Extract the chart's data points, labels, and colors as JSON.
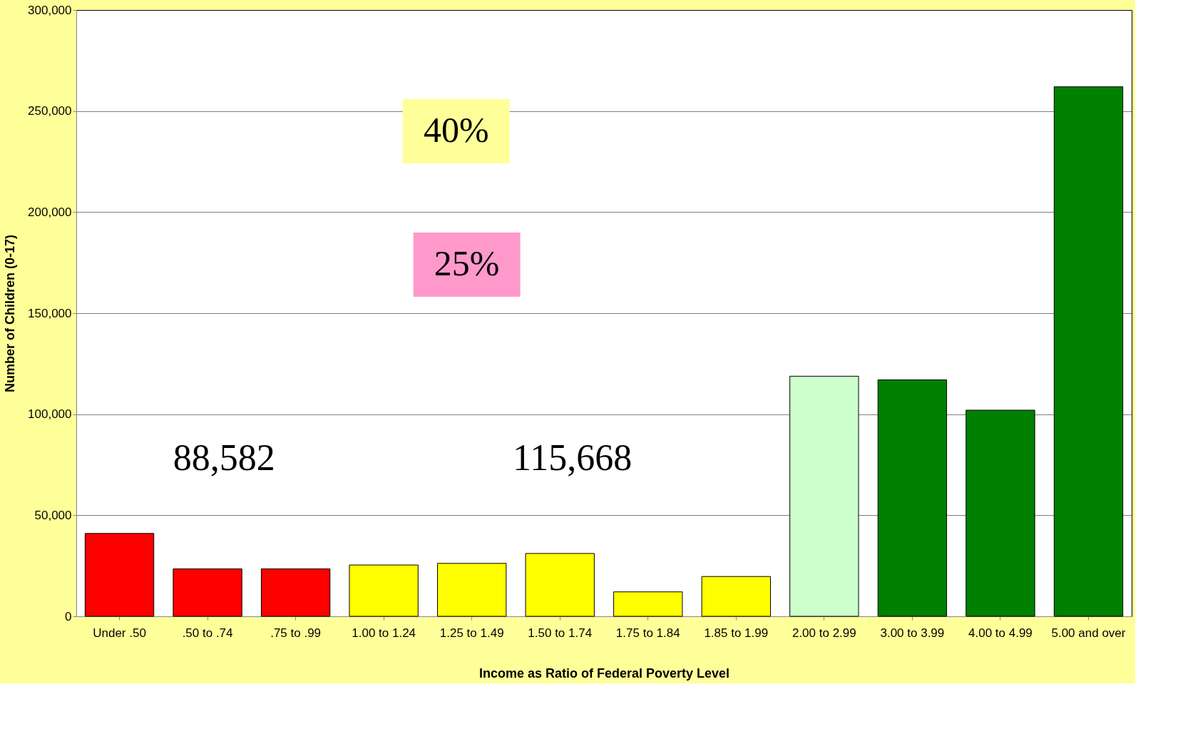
{
  "chart_data": {
    "type": "bar",
    "xlabel": "Income as Ratio of Federal Poverty Level",
    "ylabel": "Number of Children (0-17)",
    "categories": [
      "Under .50",
      ".50 to .74",
      ".75 to .99",
      "1.00 to 1.24",
      "1.25 to 1.49",
      "1.50 to 1.74",
      "1.75 to 1.84",
      "1.85 to 1.99",
      "2.00 to 2.99",
      "3.00 to 3.99",
      "4.00 to 4.99",
      "5.00 and over"
    ],
    "values": [
      41000,
      23500,
      23500,
      25400,
      26200,
      31100,
      12100,
      19700,
      118800,
      117000,
      102000,
      262000
    ],
    "colors": [
      "#ff0000",
      "#ff0000",
      "#ff0000",
      "#ffff00",
      "#ffff00",
      "#ffff00",
      "#ffff00",
      "#ffff00",
      "#ccffcc",
      "#008000",
      "#008000",
      "#008000"
    ],
    "ylim": [
      0,
      300000
    ],
    "yticks": [
      0,
      {
        "value": 50000,
        "label": "50,000"
      },
      {
        "value": 100000,
        "label": "100,000"
      },
      {
        "value": 150000,
        "label": "150,000"
      },
      {
        "value": 200000,
        "label": "200,000"
      },
      {
        "value": 250000,
        "label": "250,000"
      },
      {
        "value": 300000,
        "label": "300,000"
      }
    ],
    "grid": "y",
    "annotations": [
      "40%",
      "25%",
      "88,582",
      "115,668"
    ]
  }
}
